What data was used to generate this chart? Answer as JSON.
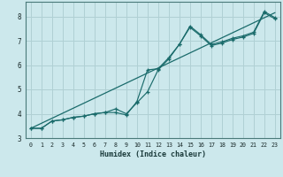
{
  "xlabel": "Humidex (Indice chaleur)",
  "bg_color": "#cce8ec",
  "grid_color": "#b0d0d4",
  "line_color": "#1a6b6b",
  "xlim": [
    -0.5,
    23.5
  ],
  "ylim": [
    3.0,
    8.6
  ],
  "xticks": [
    0,
    1,
    2,
    3,
    4,
    5,
    6,
    7,
    8,
    9,
    10,
    11,
    12,
    13,
    14,
    15,
    16,
    17,
    18,
    19,
    20,
    21,
    22,
    23
  ],
  "yticks": [
    3,
    4,
    5,
    6,
    7,
    8
  ],
  "series1_x": [
    0,
    1,
    2,
    3,
    4,
    5,
    6,
    7,
    8,
    9,
    10,
    11,
    12,
    13,
    14,
    15,
    16,
    17,
    18,
    19,
    20,
    21,
    22,
    23
  ],
  "series1_y": [
    3.4,
    3.4,
    3.7,
    3.75,
    3.85,
    3.9,
    4.0,
    4.05,
    4.05,
    3.95,
    4.5,
    5.8,
    5.85,
    6.3,
    6.85,
    7.6,
    7.25,
    6.85,
    6.95,
    7.1,
    7.2,
    7.35,
    8.2,
    7.95
  ],
  "series2_x": [
    0,
    1,
    2,
    3,
    4,
    5,
    6,
    7,
    8,
    9,
    10,
    11,
    12,
    13,
    14,
    15,
    16,
    17,
    18,
    19,
    20,
    21,
    22,
    23
  ],
  "series2_y": [
    3.4,
    3.4,
    3.7,
    3.75,
    3.85,
    3.9,
    4.0,
    4.05,
    4.2,
    4.0,
    4.45,
    4.9,
    5.8,
    6.25,
    6.85,
    7.55,
    7.2,
    6.8,
    6.9,
    7.05,
    7.15,
    7.3,
    8.15,
    7.9
  ],
  "series3_x": [
    0,
    23
  ],
  "series3_y": [
    3.4,
    8.15
  ]
}
